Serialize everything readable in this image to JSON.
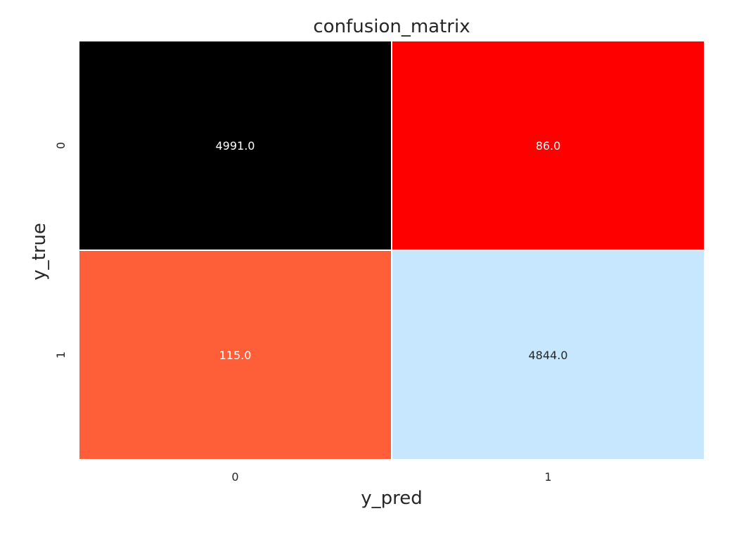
{
  "chart_data": {
    "type": "heatmap",
    "title": "confusion_matrix",
    "xlabel": "y_pred",
    "ylabel": "y_true",
    "x_categories": [
      "0",
      "1"
    ],
    "y_categories": [
      "0",
      "1"
    ],
    "values": [
      [
        4991.0,
        86.0
      ],
      [
        115.0,
        4844.0
      ]
    ],
    "value_labels": [
      [
        "4991.0",
        "86.0"
      ],
      [
        "115.0",
        "4844.0"
      ]
    ],
    "cell_colors": [
      [
        "#000000",
        "#ff0000"
      ],
      [
        "#ff5f38",
        "#c6e7fd"
      ]
    ],
    "label_colors": [
      [
        "#ffffff",
        "#ffffff"
      ],
      [
        "#ffffff",
        "#262626"
      ]
    ],
    "grid_color": "#ffffff",
    "colorbar": false
  }
}
